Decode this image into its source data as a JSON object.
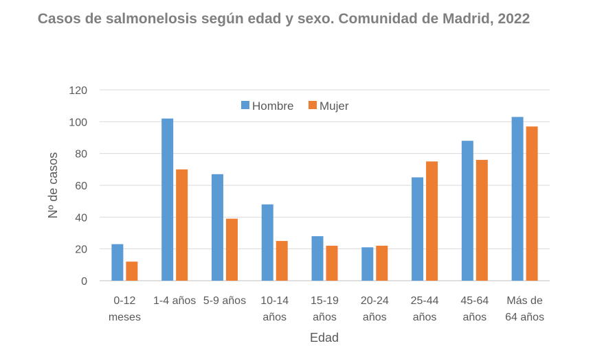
{
  "chart_data": {
    "type": "bar",
    "title": "Casos de salmonelosis según edad y sexo. Comunidad de Madrid, 2022",
    "xlabel": "Edad",
    "ylabel": "Nº de casos",
    "ylim": [
      0,
      120
    ],
    "yticks": [
      0,
      20,
      40,
      60,
      80,
      100,
      120
    ],
    "grid": true,
    "legend": "top-center",
    "categories": [
      [
        "0-12",
        "meses"
      ],
      [
        "1-4 años"
      ],
      [
        "5-9 años"
      ],
      [
        "10-14",
        "años"
      ],
      [
        "15-19",
        "años"
      ],
      [
        "20-24",
        "años"
      ],
      [
        "25-44",
        "años"
      ],
      [
        "45-64",
        "años"
      ],
      [
        "Más de",
        "64 años"
      ]
    ],
    "series": [
      {
        "name": "Hombre",
        "color": "#5b9bd5",
        "values": [
          23,
          102,
          67,
          48,
          28,
          21,
          65,
          88,
          103
        ]
      },
      {
        "name": "Mujer",
        "color": "#ed7d31",
        "values": [
          12,
          70,
          39,
          25,
          22,
          22,
          75,
          76,
          97
        ]
      }
    ]
  }
}
